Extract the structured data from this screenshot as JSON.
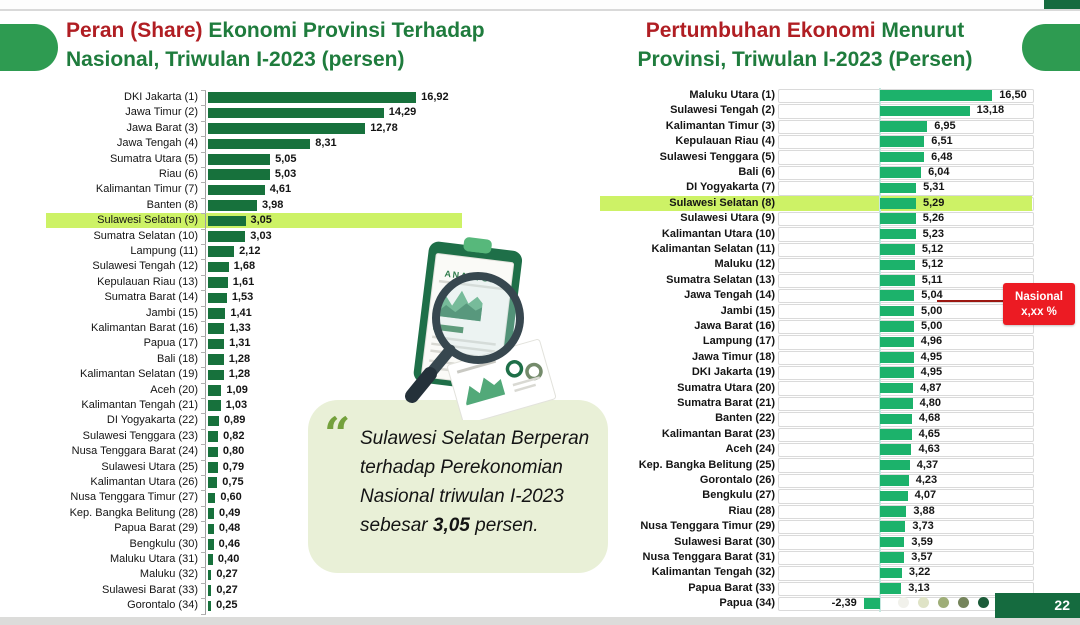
{
  "left_title": {
    "red": "Peran (Share)",
    "green": " Ekonomi Provinsi Terhadap",
    "line2": "Nasional, Triwulan I-2023 (persen)"
  },
  "right_title": {
    "red": "Pertumbuhan Ekonomi",
    "green": " Menurut",
    "line2": "Provinsi, Triwulan I-2023 (Persen)"
  },
  "quote": {
    "before": "Sulawesi Selatan Berperan terhadap Perekonomian Nasional triwulan I-2023 sebesar ",
    "bold": "3,05",
    "after": " persen."
  },
  "annotation": {
    "line1": "Nasional",
    "line2": "x,xx %"
  },
  "illustration": {
    "title": "ANALYSIS"
  },
  "icons": {
    "quote": "“"
  },
  "page": {
    "number": "22"
  },
  "pagination_dot_colors": [
    "#F1F1EB",
    "#DFE3C6",
    "#9FAE78",
    "#75845B",
    "#1B5B38"
  ],
  "colors": {
    "left_bar": "#17713C",
    "right_bar": "#1CB26B",
    "highlight": "#CDF266",
    "title_red": "#B01E23",
    "title_green": "#1F7C3D",
    "badge_red": "#EC1B23",
    "pill_green": "#2E9B51",
    "page_box_green": "#156B3F",
    "quote_bg": "#E9F0D7"
  },
  "chart_data": [
    {
      "type": "bar",
      "orientation": "horizontal",
      "title": "Peran (Share) Ekonomi Provinsi Terhadap Nasional, Triwulan I-2023 (persen)",
      "xlim": [
        0,
        18
      ],
      "highlight_category": "Sulawesi Selatan (9)",
      "highlight_index": 8,
      "categories": [
        "DKI Jakarta (1)",
        "Jawa Timur (2)",
        "Jawa Barat (3)",
        "Jawa Tengah (4)",
        "Sumatra Utara (5)",
        "Riau (6)",
        "Kalimantan Timur (7)",
        "Banten (8)",
        "Sulawesi Selatan (9)",
        "Sumatra Selatan (10)",
        "Lampung (11)",
        "Sulawesi Tengah (12)",
        "Kepulauan Riau (13)",
        "Sumatra Barat (14)",
        "Jambi (15)",
        "Kalimantan Barat (16)",
        "Papua (17)",
        "Bali (18)",
        "Kalimantan Selatan (19)",
        "Aceh (20)",
        "Kalimantan Tengah (21)",
        "DI Yogyakarta (22)",
        "Sulawesi Tenggara (23)",
        "Nusa Tenggara Barat (24)",
        "Sulawesi Utara (25)",
        "Kalimantan Utara (26)",
        "Nusa Tenggara Timur (27)",
        "Kep. Bangka Belitung (28)",
        "Papua Barat (29)",
        "Bengkulu (30)",
        "Maluku Utara (31)",
        "Maluku (32)",
        "Sulawesi Barat (33)",
        "Gorontalo (34)"
      ],
      "values": [
        16.92,
        14.29,
        12.78,
        8.31,
        5.05,
        5.03,
        4.61,
        3.98,
        3.05,
        3.03,
        2.12,
        1.68,
        1.61,
        1.53,
        1.41,
        1.33,
        1.31,
        1.28,
        1.28,
        1.09,
        1.03,
        0.89,
        0.82,
        0.8,
        0.79,
        0.75,
        0.6,
        0.49,
        0.48,
        0.46,
        0.4,
        0.27,
        0.27,
        0.25
      ]
    },
    {
      "type": "bar",
      "orientation": "horizontal",
      "title": "Pertumbuhan Ekonomi Menurut Provinsi, Triwulan I-2023 (Persen)",
      "xlim": [
        -3,
        17
      ],
      "highlight_category": "Sulawesi Selatan (8)",
      "highlight_index": 7,
      "annotation": "Nasional x,xx %",
      "categories": [
        "Maluku Utara (1)",
        "Sulawesi Tengah (2)",
        "Kalimantan Timur (3)",
        "Kepulauan Riau (4)",
        "Sulawesi Tenggara (5)",
        "Bali (6)",
        "DI Yogyakarta (7)",
        "Sulawesi Selatan (8)",
        "Sulawesi Utara (9)",
        "Kalimantan Utara (10)",
        "Kalimantan Selatan (11)",
        "Maluku (12)",
        "Sumatra Selatan (13)",
        "Jawa Tengah (14)",
        "Jambi (15)",
        "Jawa Barat (16)",
        "Lampung (17)",
        "Jawa Timur (18)",
        "DKI Jakarta (19)",
        "Sumatra Utara (20)",
        "Sumatra Barat (21)",
        "Banten (22)",
        "Kalimantan Barat (23)",
        "Aceh (24)",
        "Kep. Bangka Belitung (25)",
        "Gorontalo (26)",
        "Bengkulu (27)",
        "Riau (28)",
        "Nusa Tenggara Timur (29)",
        "Sulawesi Barat (30)",
        "Nusa Tenggara Barat (31)",
        "Kalimantan Tengah (32)",
        "Papua Barat (33)",
        "Papua (34)"
      ],
      "values": [
        16.5,
        13.18,
        6.95,
        6.51,
        6.48,
        6.04,
        5.31,
        5.29,
        5.26,
        5.23,
        5.12,
        5.12,
        5.11,
        5.04,
        5.0,
        5.0,
        4.96,
        4.95,
        4.95,
        4.87,
        4.8,
        4.68,
        4.65,
        4.63,
        4.37,
        4.23,
        4.07,
        3.88,
        3.73,
        3.59,
        3.57,
        3.22,
        3.13,
        -2.39
      ]
    }
  ]
}
